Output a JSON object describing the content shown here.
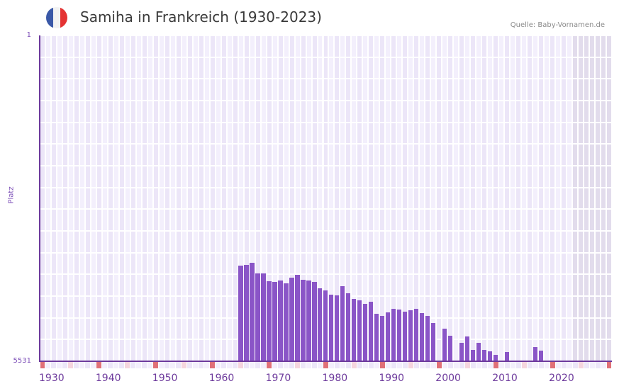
{
  "header": {
    "title": "Samiha in Frankreich (1930-2023)",
    "source": "Quelle: Baby-Vornamen.de",
    "flag_colors": [
      "#3a58a7",
      "#f2f2f2",
      "#e43333"
    ]
  },
  "colors": {
    "bar": "#8a55c7",
    "axis": "#6d3a9c",
    "grid_bg_a": "#f3effc",
    "grid_bg_b": "#ece6f8",
    "future_bg": "#e2dcec",
    "marker_decade": "#e07078",
    "marker_half": "#f5d5de"
  },
  "chart_data": {
    "type": "bar",
    "title": "Samiha in Frankreich (1930-2023)",
    "xlabel": "",
    "ylabel": "Platz",
    "y_inverted": true,
    "ylim": [
      1,
      5531
    ],
    "y_ticks": [
      "1",
      "5531"
    ],
    "x_range": [
      1930,
      2030
    ],
    "x_ticks": [
      "1930",
      "1940",
      "1950",
      "1960",
      "1970",
      "1980",
      "1990",
      "2000",
      "2010",
      "2020"
    ],
    "grid": true,
    "legend": null,
    "categories": [
      1965,
      1966,
      1967,
      1968,
      1969,
      1970,
      1971,
      1972,
      1973,
      1974,
      1975,
      1976,
      1977,
      1978,
      1979,
      1980,
      1981,
      1982,
      1983,
      1984,
      1985,
      1986,
      1987,
      1988,
      1989,
      1990,
      1991,
      1992,
      1993,
      1994,
      1995,
      1996,
      1997,
      1998,
      1999,
      2001,
      2002,
      2004,
      2005,
      2006,
      2007,
      2008,
      2009,
      2010,
      2012,
      2017,
      2018
    ],
    "values": [
      3906,
      3894,
      3858,
      4038,
      4038,
      4170,
      4182,
      4158,
      4206,
      4110,
      4062,
      4146,
      4158,
      4182,
      4290,
      4326,
      4398,
      4410,
      4254,
      4374,
      4470,
      4494,
      4554,
      4518,
      4722,
      4758,
      4698,
      4638,
      4650,
      4686,
      4662,
      4638,
      4710,
      4758,
      4878,
      4974,
      5094,
      5214,
      5106,
      5334,
      5214,
      5334,
      5358,
      5418,
      5370,
      5286,
      5346
    ]
  }
}
